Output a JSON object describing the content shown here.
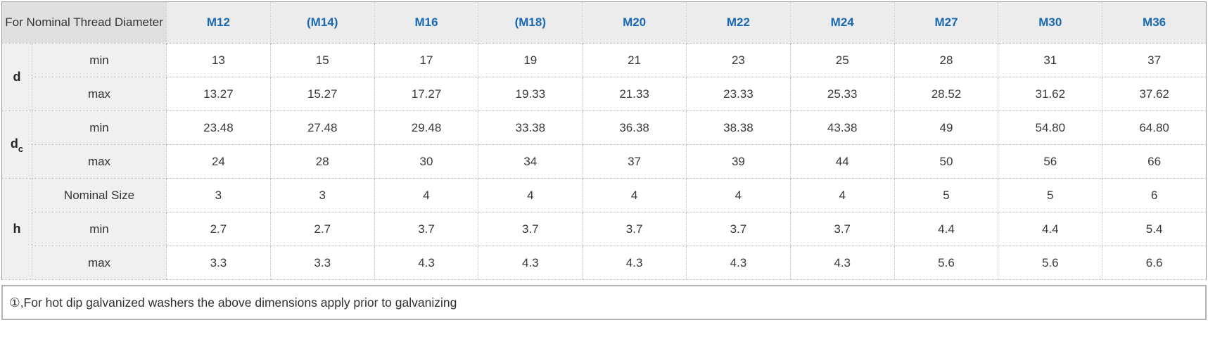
{
  "accent_color": "#1a69b4",
  "table": {
    "corner_header": "For Nominal Thread Diameter",
    "columns": [
      "M12",
      "(M14)",
      "M16",
      "(M18)",
      "M20",
      "M22",
      "M24",
      "M27",
      "M30",
      "M36"
    ],
    "row_groups": [
      {
        "label": "d",
        "sub": "",
        "rows": [
          {
            "label": "min",
            "values": [
              "13",
              "15",
              "17",
              "19",
              "21",
              "23",
              "25",
              "28",
              "31",
              "37"
            ]
          },
          {
            "label": "max",
            "values": [
              "13.27",
              "15.27",
              "17.27",
              "19.33",
              "21.33",
              "23.33",
              "25.33",
              "28.52",
              "31.62",
              "37.62"
            ]
          }
        ]
      },
      {
        "label": "d",
        "sub": "c",
        "rows": [
          {
            "label": "min",
            "values": [
              "23.48",
              "27.48",
              "29.48",
              "33.38",
              "36.38",
              "38.38",
              "43.38",
              "49",
              "54.80",
              "64.80"
            ]
          },
          {
            "label": "max",
            "values": [
              "24",
              "28",
              "30",
              "34",
              "37",
              "39",
              "44",
              "50",
              "56",
              "66"
            ]
          }
        ]
      },
      {
        "label": "h",
        "sub": "",
        "rows": [
          {
            "label": "Nominal Size",
            "values": [
              "3",
              "3",
              "4",
              "4",
              "4",
              "4",
              "4",
              "5",
              "5",
              "6"
            ]
          },
          {
            "label": "min",
            "values": [
              "2.7",
              "2.7",
              "3.7",
              "3.7",
              "3.7",
              "3.7",
              "3.7",
              "4.4",
              "4.4",
              "5.4"
            ]
          },
          {
            "label": "max",
            "values": [
              "3.3",
              "3.3",
              "4.3",
              "4.3",
              "4.3",
              "4.3",
              "4.3",
              "5.6",
              "5.6",
              "6.6"
            ]
          }
        ]
      }
    ]
  },
  "footnote": "①,For hot dip galvanized washers the above dimensions apply prior to galvanizing"
}
